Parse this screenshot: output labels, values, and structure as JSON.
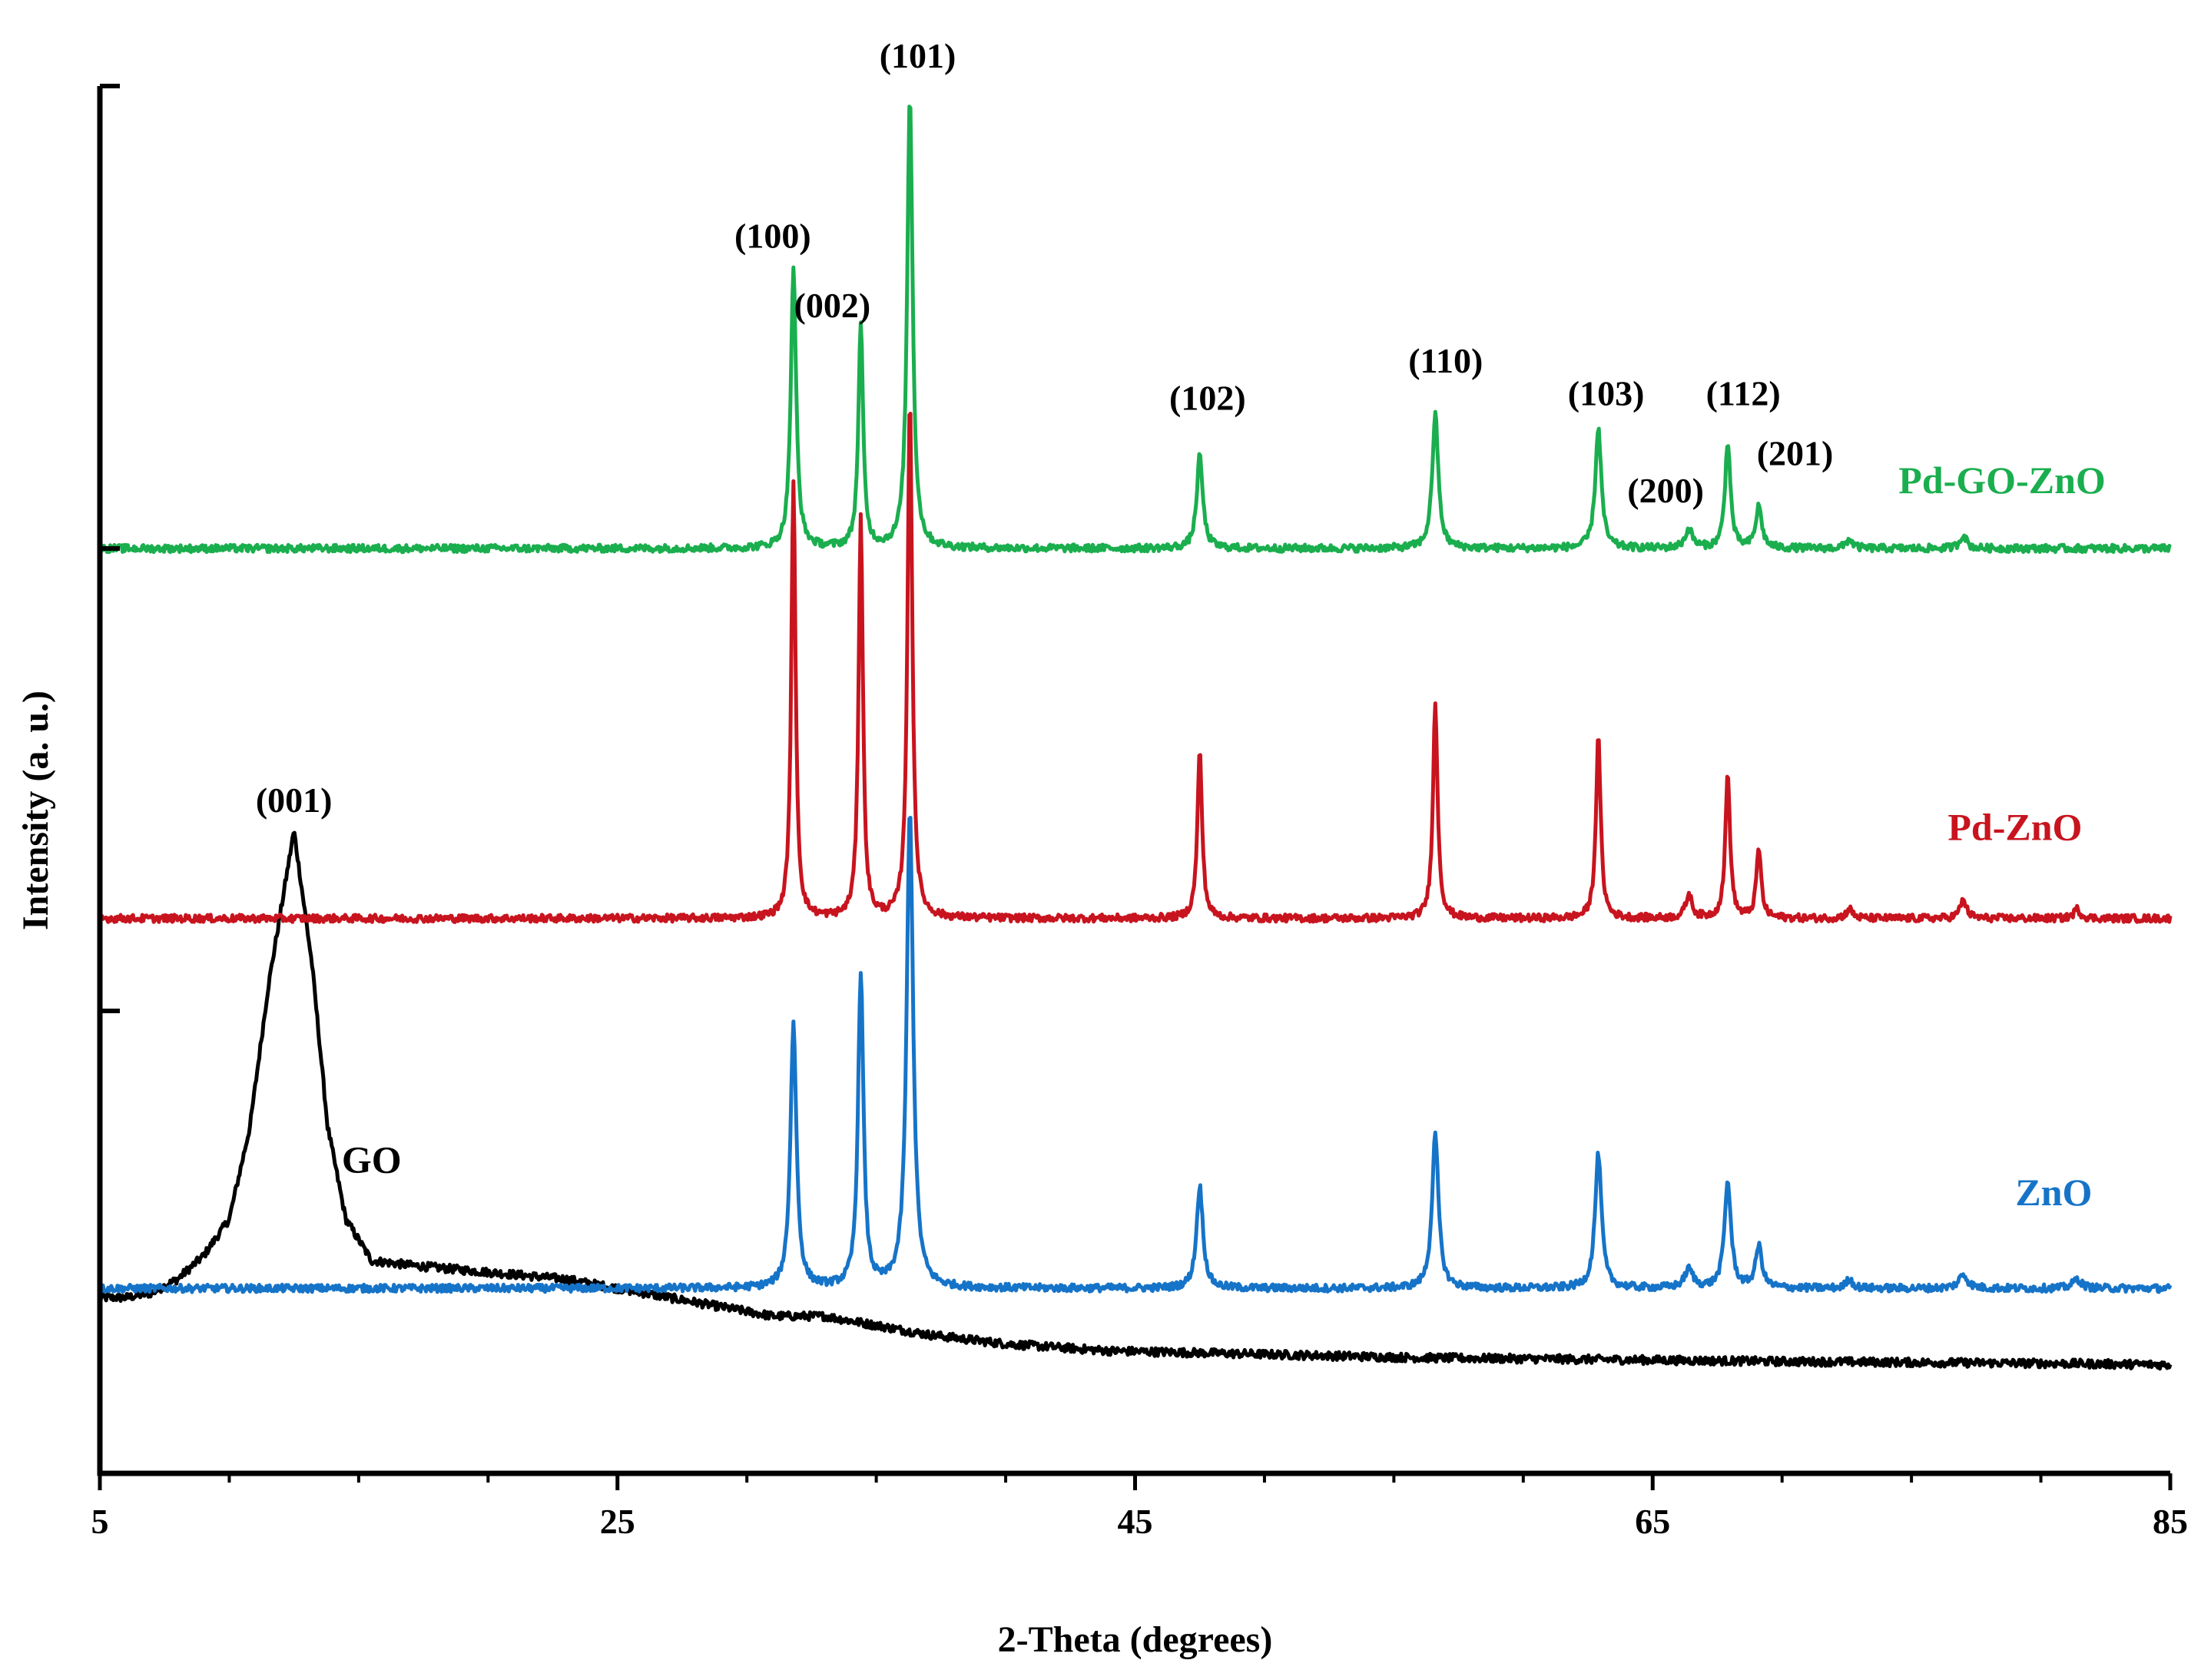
{
  "chart_data": {
    "type": "line",
    "title": "",
    "xlabel": "2-Theta (degrees)",
    "ylabel": "Intensity (a. u.)",
    "xlim": [
      5,
      85
    ],
    "xticks": [
      5,
      25,
      45,
      65,
      85
    ],
    "xtick_labels": [
      "5",
      "25",
      "45",
      "65",
      "85"
    ],
    "ylim": [
      0,
      3
    ],
    "yticks": [
      0,
      1,
      2,
      3
    ],
    "grid": false,
    "series": [
      {
        "name": "GO",
        "color": "#000000",
        "baseline": 0.2,
        "points": [
          [
            5,
            0.18
          ],
          [
            6,
            0.18
          ],
          [
            7,
            0.19
          ],
          [
            8,
            0.22
          ],
          [
            9,
            0.27
          ],
          [
            10,
            0.35
          ],
          [
            10.8,
            0.55
          ],
          [
            11.5,
            0.85
          ],
          [
            12.5,
            1.19
          ],
          [
            13.2,
            0.9
          ],
          [
            13.8,
            0.55
          ],
          [
            14.5,
            0.35
          ],
          [
            15.5,
            0.26
          ],
          [
            17,
            0.25
          ],
          [
            19,
            0.24
          ],
          [
            21,
            0.23
          ],
          [
            23,
            0.22
          ],
          [
            25,
            0.2
          ],
          [
            27,
            0.18
          ],
          [
            29,
            0.16
          ],
          [
            31,
            0.14
          ],
          [
            33,
            0.14
          ],
          [
            35,
            0.12
          ],
          [
            37,
            0.1
          ],
          [
            40,
            0.08
          ],
          [
            44,
            0.065
          ],
          [
            48,
            0.06
          ],
          [
            52,
            0.055
          ],
          [
            56,
            0.05
          ],
          [
            60,
            0.048
          ],
          [
            65,
            0.045
          ],
          [
            70,
            0.042
          ],
          [
            75,
            0.04
          ],
          [
            80,
            0.038
          ],
          [
            85,
            0.035
          ]
        ]
      },
      {
        "name": "ZnO",
        "color": "#1674C8",
        "baseline": 0.4,
        "peaks": [
          [
            31.8,
            0.57,
            0.28
          ],
          [
            34.4,
            0.68,
            0.25
          ],
          [
            36.3,
            1.03,
            0.3
          ],
          [
            47.5,
            0.22,
            0.3
          ],
          [
            56.6,
            0.33,
            0.3
          ],
          [
            62.9,
            0.29,
            0.3
          ],
          [
            66.4,
            0.04,
            0.4
          ],
          [
            67.9,
            0.23,
            0.3
          ],
          [
            69.1,
            0.09,
            0.3
          ],
          [
            72.6,
            0.02,
            0.3
          ],
          [
            77,
            0.03,
            0.4
          ],
          [
            81.4,
            0.02,
            0.4
          ]
        ]
      },
      {
        "name": "Pd-ZnO",
        "color": "#C8141E",
        "baseline": 1.2,
        "peaks": [
          [
            31.8,
            0.94,
            0.2
          ],
          [
            34.4,
            0.87,
            0.2
          ],
          [
            36.3,
            1.12,
            0.22
          ],
          [
            47.5,
            0.36,
            0.22
          ],
          [
            56.6,
            0.46,
            0.22
          ],
          [
            62.9,
            0.39,
            0.22
          ],
          [
            66.4,
            0.05,
            0.3
          ],
          [
            67.9,
            0.31,
            0.22
          ],
          [
            69.1,
            0.15,
            0.22
          ],
          [
            72.6,
            0.02,
            0.3
          ],
          [
            77,
            0.04,
            0.3
          ],
          [
            81.4,
            0.02,
            0.3
          ]
        ]
      },
      {
        "name": "Pd-GO-ZnO",
        "color": "#1AAE4E",
        "baseline": 2.0,
        "peaks": [
          [
            31.8,
            0.6,
            0.25
          ],
          [
            34.4,
            0.48,
            0.22
          ],
          [
            36.3,
            0.98,
            0.25
          ],
          [
            47.5,
            0.2,
            0.28
          ],
          [
            56.6,
            0.29,
            0.28
          ],
          [
            62.9,
            0.26,
            0.28
          ],
          [
            66.4,
            0.04,
            0.35
          ],
          [
            67.9,
            0.23,
            0.25
          ],
          [
            69.1,
            0.09,
            0.28
          ],
          [
            72.6,
            0.02,
            0.3
          ],
          [
            77,
            0.03,
            0.3
          ]
        ]
      }
    ],
    "series_labels": [
      {
        "text": "GO",
        "x": 15.5,
        "y": 0.65,
        "color": "#000000"
      },
      {
        "text": "ZnO",
        "x": 80.5,
        "y": 0.58,
        "color": "#1674C8"
      },
      {
        "text": "Pd-ZnO",
        "x": 79,
        "y": 1.37,
        "color": "#C8141E"
      },
      {
        "text": "Pd-GO-ZnO",
        "x": 78.5,
        "y": 2.12,
        "color": "#1AAE4E"
      }
    ],
    "annotations": [
      {
        "text": "(001)",
        "x": 12.5,
        "y": 1.43
      },
      {
        "text": "(100)",
        "x": 31.0,
        "y": 2.65
      },
      {
        "text": "(002)",
        "x": 33.3,
        "y": 2.5
      },
      {
        "text": "(101)",
        "x": 36.6,
        "y": 3.04
      },
      {
        "text": "(102)",
        "x": 47.8,
        "y": 2.3
      },
      {
        "text": "(110)",
        "x": 57.0,
        "y": 2.38
      },
      {
        "text": "(103)",
        "x": 63.2,
        "y": 2.31
      },
      {
        "text": "(200)",
        "x": 65.5,
        "y": 2.1
      },
      {
        "text": "(112)",
        "x": 68.5,
        "y": 2.31
      },
      {
        "text": "(201)",
        "x": 70.5,
        "y": 2.18
      }
    ]
  }
}
